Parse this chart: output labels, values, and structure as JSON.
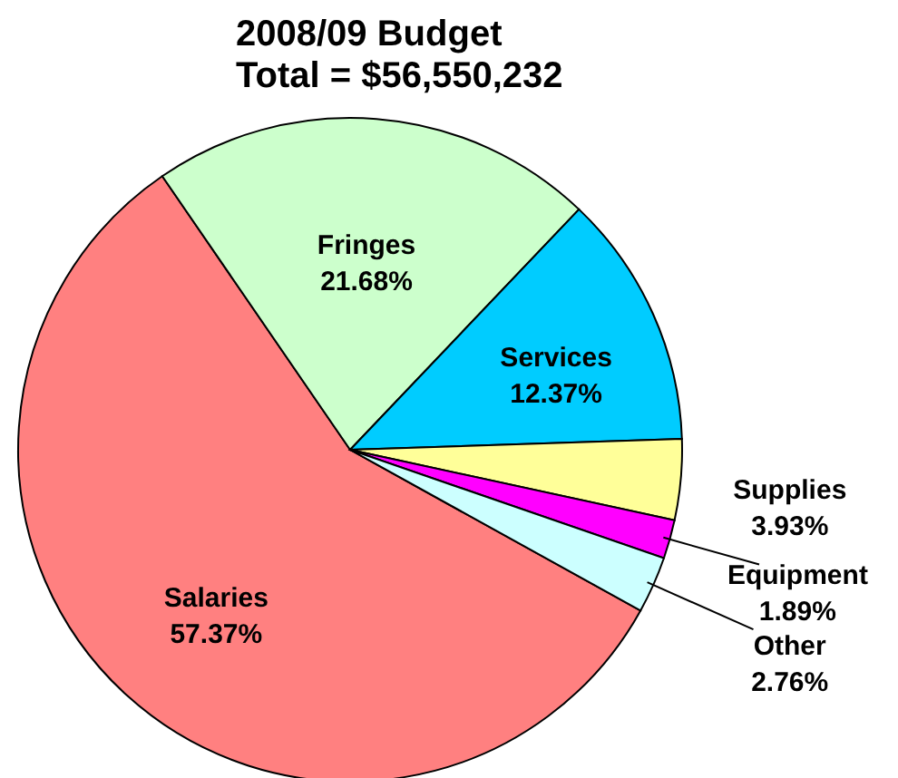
{
  "chart_data": {
    "type": "pie",
    "title": "2008/09 Budget",
    "subtitle": "Total = $56,550,232",
    "categories": [
      "Salaries",
      "Fringes",
      "Services",
      "Supplies",
      "Equipment",
      "Other"
    ],
    "values": [
      57.37,
      21.68,
      12.37,
      3.93,
      1.89,
      2.76
    ],
    "value_labels": [
      "57.37%",
      "21.68%",
      "12.37%",
      "3.93%",
      "1.89%",
      "2.76%"
    ],
    "colors": [
      "#ff8080",
      "#ccffcc",
      "#00ccff",
      "#ffff99",
      "#ff00ff",
      "#ccffff"
    ]
  }
}
